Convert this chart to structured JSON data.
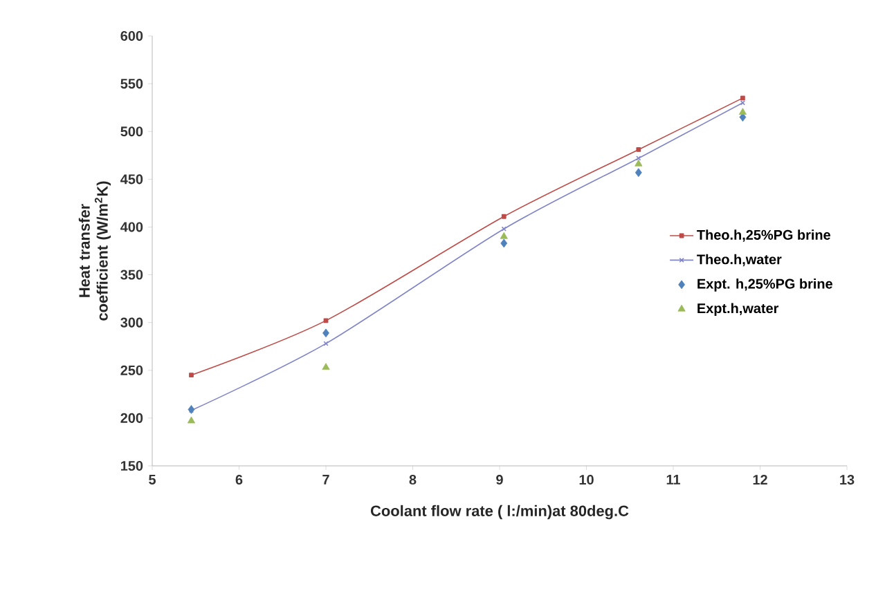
{
  "chart_data": {
    "type": "line",
    "xlabel": "Coolant flow rate ( l:/min)at 80deg.C",
    "ylabel": "Heat transfer coefficient (W/m$^{2}$K)",
    "xlim": [
      5,
      13
    ],
    "xticks": [
      5,
      6,
      7,
      8,
      9,
      10,
      11,
      12,
      13
    ],
    "ylim": [
      150,
      600
    ],
    "yticks": [
      150,
      200,
      250,
      300,
      350,
      400,
      450,
      500,
      550,
      600
    ],
    "grid": false,
    "legend": "right",
    "series": [
      {
        "name": "Theo.h,25%PG brine",
        "marker": "square",
        "line_style": "solid",
        "color": "#be4b48",
        "x": [
          5.45,
          7.0,
          9.05,
          10.6,
          11.8
        ],
        "values": [
          245,
          302,
          411,
          481,
          535
        ]
      },
      {
        "name": "Theo.h,water",
        "marker": "cross",
        "line_style": "solid",
        "color": "#8085c8",
        "x": [
          5.45,
          7.0,
          9.05,
          10.6,
          11.8
        ],
        "values": [
          208,
          278,
          398,
          472,
          530
        ]
      },
      {
        "name": "Expt. h,25%PG brine",
        "type": "scatter",
        "marker": "diamond",
        "color": "#4f81bd",
        "x": [
          5.45,
          7.0,
          9.05,
          10.6,
          11.8
        ],
        "values": [
          209,
          289,
          383,
          457,
          515
        ]
      },
      {
        "name": "Expt.h,water",
        "type": "scatter",
        "marker": "triangle",
        "color": "#9bbb59",
        "x": [
          5.45,
          7.0,
          9.05,
          10.6,
          11.8
        ],
        "values": [
          197,
          253,
          390,
          466,
          520
        ]
      }
    ]
  }
}
